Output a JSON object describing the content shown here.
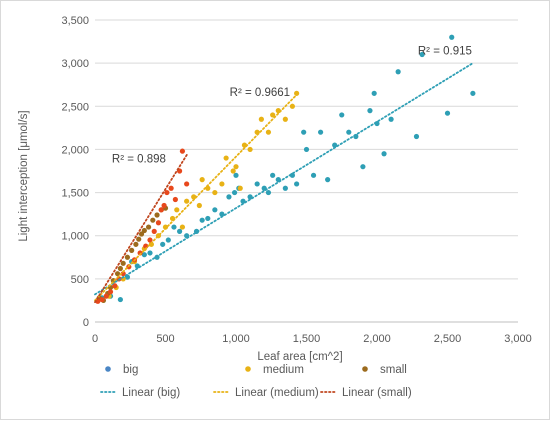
{
  "chart_data": {
    "type": "scatter",
    "xlabel": "Leaf area [cm^2]",
    "ylabel": "Light interception [μmol/s]",
    "xlim": [
      0,
      3000
    ],
    "ylim": [
      0,
      3500
    ],
    "x_ticks": [
      0,
      500,
      1000,
      1500,
      2000,
      2500,
      3000
    ],
    "y_ticks": [
      0,
      500,
      1000,
      1500,
      2000,
      2500,
      3000,
      3500
    ],
    "x_tick_labels": [
      "0",
      "500",
      "1,000",
      "1,500",
      "2,000",
      "2,500",
      "3,000"
    ],
    "y_tick_labels": [
      "0",
      "500",
      "1,000",
      "1,500",
      "2,000",
      "2,500",
      "3,000",
      "3,500"
    ],
    "grid": "horizontal",
    "legend_position": "bottom",
    "series": [
      {
        "name": "big",
        "color": "#2e9fb5",
        "points": [
          [
            50,
            280
          ],
          [
            110,
            300
          ],
          [
            180,
            260
          ],
          [
            230,
            520
          ],
          [
            260,
            700
          ],
          [
            300,
            650
          ],
          [
            350,
            780
          ],
          [
            390,
            800
          ],
          [
            440,
            750
          ],
          [
            480,
            900
          ],
          [
            520,
            950
          ],
          [
            560,
            1100
          ],
          [
            600,
            1050
          ],
          [
            650,
            1000
          ],
          [
            720,
            1050
          ],
          [
            760,
            1180
          ],
          [
            800,
            1200
          ],
          [
            850,
            1300
          ],
          [
            900,
            1250
          ],
          [
            950,
            1450
          ],
          [
            990,
            1500
          ],
          [
            1000,
            1700
          ],
          [
            1020,
            1550
          ],
          [
            1050,
            1400
          ],
          [
            1100,
            1450
          ],
          [
            1150,
            1600
          ],
          [
            1200,
            1550
          ],
          [
            1230,
            1500
          ],
          [
            1260,
            1700
          ],
          [
            1300,
            1650
          ],
          [
            1350,
            1550
          ],
          [
            1400,
            1700
          ],
          [
            1430,
            1600
          ],
          [
            1480,
            2200
          ],
          [
            1500,
            2000
          ],
          [
            1550,
            1700
          ],
          [
            1600,
            2200
          ],
          [
            1650,
            1650
          ],
          [
            1700,
            2050
          ],
          [
            1750,
            2400
          ],
          [
            1800,
            2200
          ],
          [
            1850,
            2150
          ],
          [
            1900,
            1800
          ],
          [
            1950,
            2450
          ],
          [
            1980,
            2650
          ],
          [
            2000,
            2300
          ],
          [
            2050,
            1950
          ],
          [
            2100,
            2350
          ],
          [
            2150,
            2900
          ],
          [
            2280,
            2150
          ],
          [
            2320,
            3100
          ],
          [
            2500,
            2420
          ],
          [
            2530,
            3300
          ],
          [
            2680,
            2650
          ]
        ]
      },
      {
        "name": "medium",
        "color": "#e8b215",
        "points": [
          [
            100,
            300
          ],
          [
            150,
            400
          ],
          [
            200,
            500
          ],
          [
            280,
            700
          ],
          [
            350,
            850
          ],
          [
            400,
            900
          ],
          [
            450,
            1000
          ],
          [
            500,
            1100
          ],
          [
            550,
            1200
          ],
          [
            580,
            1300
          ],
          [
            620,
            1100
          ],
          [
            650,
            1400
          ],
          [
            700,
            1450
          ],
          [
            740,
            1350
          ],
          [
            760,
            1650
          ],
          [
            800,
            1550
          ],
          [
            850,
            1500
          ],
          [
            900,
            1600
          ],
          [
            930,
            1900
          ],
          [
            980,
            1750
          ],
          [
            1000,
            1800
          ],
          [
            1030,
            1550
          ],
          [
            1060,
            2050
          ],
          [
            1100,
            2000
          ],
          [
            1150,
            2200
          ],
          [
            1180,
            2350
          ],
          [
            1230,
            2200
          ],
          [
            1260,
            2400
          ],
          [
            1300,
            2450
          ],
          [
            1350,
            2350
          ],
          [
            1400,
            2500
          ],
          [
            1430,
            2650
          ]
        ]
      },
      {
        "name": "small",
        "color": "#9c6b1e",
        "points": [
          [
            30,
            280
          ],
          [
            60,
            250
          ],
          [
            90,
            330
          ],
          [
            110,
            400
          ],
          [
            130,
            480
          ],
          [
            160,
            560
          ],
          [
            180,
            620
          ],
          [
            200,
            680
          ],
          [
            230,
            750
          ],
          [
            260,
            830
          ],
          [
            290,
            900
          ],
          [
            310,
            960
          ],
          [
            330,
            1020
          ],
          [
            350,
            1060
          ],
          [
            380,
            1100
          ],
          [
            410,
            1180
          ],
          [
            440,
            1240
          ],
          [
            470,
            1300
          ],
          [
            500,
            1320
          ]
        ]
      },
      {
        "name": "",
        "color": "#e8481c",
        "points": [
          [
            20,
            240
          ],
          [
            50,
            260
          ],
          [
            80,
            300
          ],
          [
            110,
            350
          ],
          [
            140,
            420
          ],
          [
            170,
            500
          ],
          [
            200,
            560
          ],
          [
            240,
            640
          ],
          [
            280,
            720
          ],
          [
            320,
            800
          ],
          [
            360,
            880
          ],
          [
            390,
            950
          ],
          [
            420,
            1050
          ],
          [
            450,
            1150
          ],
          [
            470,
            1300
          ],
          [
            490,
            1350
          ],
          [
            510,
            1500
          ],
          [
            540,
            1550
          ],
          [
            570,
            1420
          ],
          [
            600,
            1750
          ],
          [
            620,
            1980
          ],
          [
            650,
            1600
          ]
        ]
      }
    ],
    "trendlines": [
      {
        "name": "Linear (big)",
        "color": "#2e9fb5",
        "x": [
          0,
          2680
        ],
        "y": [
          320,
          3000
        ],
        "r2_label": "R² = 0.915",
        "r2_at": [
          2290,
          3100
        ]
      },
      {
        "name": "Linear (medium)",
        "color": "#e8b215",
        "x": [
          0,
          1440
        ],
        "y": [
          250,
          2650
        ],
        "r2_label": "R² = 0.9661",
        "r2_at": [
          955,
          2620
        ]
      },
      {
        "name": "Linear (small)",
        "color": "#c0461e",
        "x": [
          0,
          660
        ],
        "y": [
          230,
          1960
        ],
        "r2_label": "R² = 0.898",
        "r2_at": [
          120,
          1850
        ]
      }
    ],
    "legend": {
      "markers": [
        {
          "label": "big",
          "color": "#4a86c5"
        },
        {
          "label": "medium",
          "color": "#e8b215"
        },
        {
          "label": "small",
          "color": "#9c6b1e"
        }
      ],
      "lines": [
        {
          "label": "Linear (big)",
          "color": "#2e9fb5"
        },
        {
          "label": "Linear (medium)",
          "color": "#e8b215"
        },
        {
          "label": "Linear (small)",
          "color": "#c0461e"
        }
      ]
    }
  }
}
